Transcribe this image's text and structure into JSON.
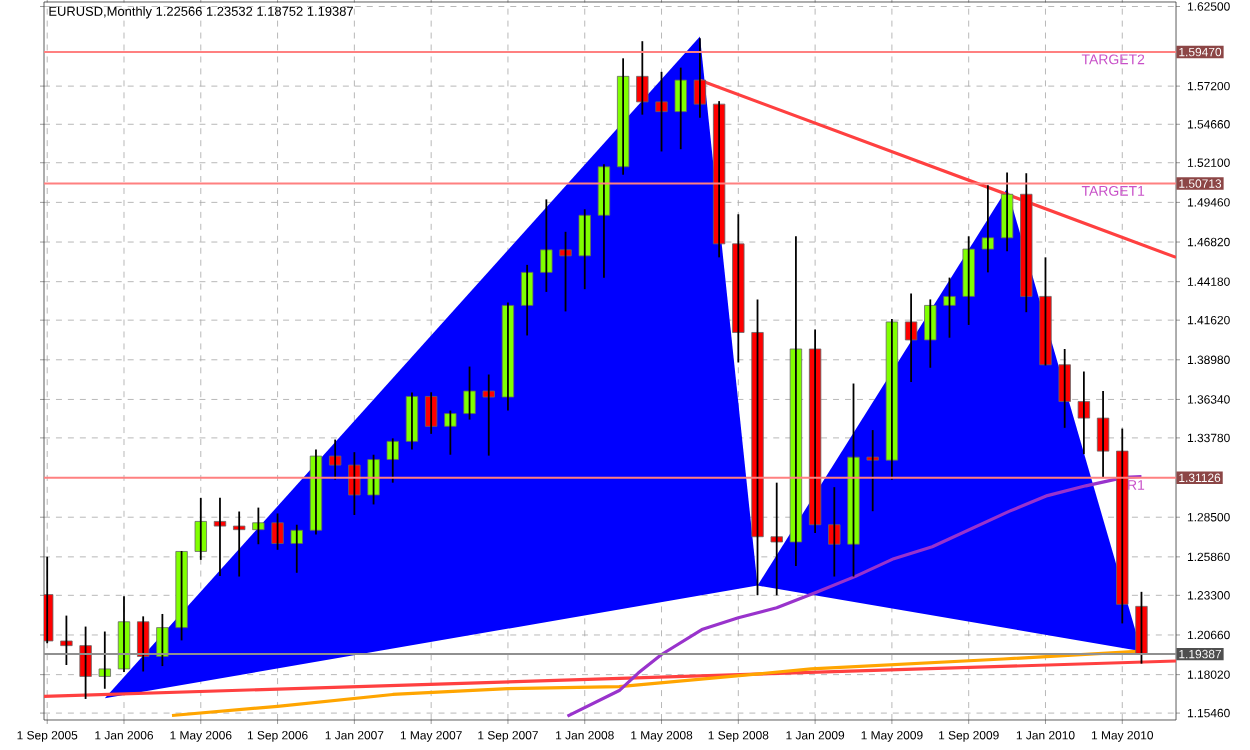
{
  "chart_data": {
    "type": "candlestick",
    "title": "EURUSD,Monthly  1.22566 1.23532 1.18752 1.19387",
    "x": [
      "2005-09",
      "2005-10",
      "2005-11",
      "2005-12",
      "2006-01",
      "2006-02",
      "2006-03",
      "2006-04",
      "2006-05",
      "2006-06",
      "2006-07",
      "2006-08",
      "2006-09",
      "2006-10",
      "2006-11",
      "2006-12",
      "2007-01",
      "2007-02",
      "2007-03",
      "2007-04",
      "2007-05",
      "2007-06",
      "2007-07",
      "2007-08",
      "2007-09",
      "2007-10",
      "2007-11",
      "2007-12",
      "2008-01",
      "2008-02",
      "2008-03",
      "2008-04",
      "2008-05",
      "2008-06",
      "2008-07",
      "2008-08",
      "2008-09",
      "2008-10",
      "2008-11",
      "2008-12",
      "2009-01",
      "2009-02",
      "2009-03",
      "2009-04",
      "2009-05",
      "2009-06",
      "2009-07",
      "2009-08",
      "2009-09",
      "2009-10",
      "2009-11",
      "2009-12",
      "2010-01",
      "2010-02",
      "2010-03",
      "2010-04",
      "2010-05",
      "2010-06"
    ],
    "ohlc": [
      [
        1.2335,
        1.2587,
        1.2011,
        1.2026
      ],
      [
        1.2026,
        1.2195,
        1.1866,
        1.1995
      ],
      [
        1.1995,
        1.2122,
        1.164,
        1.179
      ],
      [
        1.179,
        1.2089,
        1.1708,
        1.184
      ],
      [
        1.184,
        1.2323,
        1.182,
        1.2154
      ],
      [
        1.2154,
        1.219,
        1.1823,
        1.1923
      ],
      [
        1.1923,
        1.2206,
        1.1859,
        1.2115
      ],
      [
        1.2115,
        1.2625,
        1.203,
        1.2622
      ],
      [
        1.2622,
        1.2979,
        1.2566,
        1.2822
      ],
      [
        1.2822,
        1.2979,
        1.2458,
        1.2791
      ],
      [
        1.2791,
        1.2888,
        1.2455,
        1.2767
      ],
      [
        1.2767,
        1.2914,
        1.267,
        1.2813
      ],
      [
        1.2813,
        1.2875,
        1.2633,
        1.2675
      ],
      [
        1.2675,
        1.28,
        1.248,
        1.2763
      ],
      [
        1.2763,
        1.33,
        1.2735,
        1.3257
      ],
      [
        1.3257,
        1.3367,
        1.31,
        1.3197
      ],
      [
        1.3197,
        1.3283,
        1.2865,
        1.2998
      ],
      [
        1.2998,
        1.3266,
        1.2935,
        1.3234
      ],
      [
        1.3234,
        1.3375,
        1.308,
        1.3355
      ],
      [
        1.3355,
        1.368,
        1.33,
        1.3654
      ],
      [
        1.3654,
        1.3682,
        1.3405,
        1.3455
      ],
      [
        1.3455,
        1.356,
        1.3266,
        1.354
      ],
      [
        1.354,
        1.3853,
        1.35,
        1.369
      ],
      [
        1.369,
        1.38,
        1.326,
        1.365
      ],
      [
        1.365,
        1.428,
        1.356,
        1.426
      ],
      [
        1.426,
        1.453,
        1.406,
        1.448
      ],
      [
        1.448,
        1.4966,
        1.435,
        1.463
      ],
      [
        1.463,
        1.475,
        1.422,
        1.459
      ],
      [
        1.459,
        1.49,
        1.4368,
        1.486
      ],
      [
        1.486,
        1.52,
        1.4445,
        1.5183
      ],
      [
        1.5183,
        1.5905,
        1.513,
        1.5785
      ],
      [
        1.5785,
        1.6019,
        1.553,
        1.5615
      ],
      [
        1.5615,
        1.5815,
        1.5285,
        1.555
      ],
      [
        1.555,
        1.5843,
        1.53,
        1.576
      ],
      [
        1.576,
        1.6038,
        1.551,
        1.56
      ],
      [
        1.56,
        1.562,
        1.458,
        1.467
      ],
      [
        1.467,
        1.4867,
        1.388,
        1.408
      ],
      [
        1.408,
        1.43,
        1.233,
        1.272
      ],
      [
        1.272,
        1.308,
        1.233,
        1.2685
      ],
      [
        1.2685,
        1.472,
        1.2525,
        1.397
      ],
      [
        1.397,
        1.41,
        1.2745,
        1.28
      ],
      [
        1.28,
        1.305,
        1.2455,
        1.267
      ],
      [
        1.267,
        1.374,
        1.2455,
        1.325
      ],
      [
        1.325,
        1.343,
        1.289,
        1.323
      ],
      [
        1.323,
        1.417,
        1.31,
        1.415
      ],
      [
        1.415,
        1.434,
        1.375,
        1.403
      ],
      [
        1.403,
        1.43,
        1.3845,
        1.426
      ],
      [
        1.426,
        1.4445,
        1.4045,
        1.432
      ],
      [
        1.432,
        1.472,
        1.413,
        1.4635
      ],
      [
        1.4635,
        1.506,
        1.448,
        1.471
      ],
      [
        1.471,
        1.5145,
        1.462,
        1.5
      ],
      [
        1.5,
        1.514,
        1.4215,
        1.432
      ],
      [
        1.432,
        1.458,
        1.386,
        1.3865
      ],
      [
        1.3865,
        1.397,
        1.3445,
        1.362
      ],
      [
        1.362,
        1.382,
        1.327,
        1.351
      ],
      [
        1.351,
        1.369,
        1.3115,
        1.329
      ],
      [
        1.329,
        1.344,
        1.2143,
        1.227
      ],
      [
        1.22566,
        1.23532,
        1.18752,
        1.19387
      ]
    ],
    "colors": [
      "#ff0000",
      "#ff0000",
      "#ff0000",
      "#80ff00",
      "#80ff00",
      "#ff0000",
      "#80ff00",
      "#80ff00",
      "#80ff00",
      "#ff0000",
      "#ff0000",
      "#80ff00",
      "#ff0000",
      "#80ff00",
      "#80ff00",
      "#ff0000",
      "#ff0000",
      "#80ff00",
      "#80ff00",
      "#80ff00",
      "#ff0000",
      "#80ff00",
      "#80ff00",
      "#ff0000",
      "#80ff00",
      "#80ff00",
      "#80ff00",
      "#ff0000",
      "#80ff00",
      "#80ff00",
      "#80ff00",
      "#ff0000",
      "#ff0000",
      "#80ff00",
      "#ff0000",
      "#ff0000",
      "#ff0000",
      "#ff0000",
      "#ff0000",
      "#80ff00",
      "#ff0000",
      "#ff0000",
      "#80ff00",
      "#ff0000",
      "#80ff00",
      "#ff0000",
      "#80ff00",
      "#80ff00",
      "#80ff00",
      "#80ff00",
      "#80ff00",
      "#ff0000",
      "#ff0000",
      "#ff0000",
      "#ff0000",
      "#ff0000",
      "#ff0000",
      "#ff0000"
    ],
    "series": [
      {
        "type": "area",
        "color": "#0000ff",
        "x": [
          "2005-12-01",
          "2008-07-01",
          "2008-10-01"
        ],
        "values": [
          1.1644,
          1.605,
          1.2395
        ]
      },
      {
        "type": "area",
        "color": "#0000ff",
        "x": [
          "2008-10-01",
          "2009-11-01",
          "2010-06-01"
        ],
        "values": [
          1.2395,
          1.5038,
          1.1958
        ]
      },
      {
        "type": "line",
        "color": "#ff4040",
        "x": [
          "2008-07-01",
          "2010-07-25"
        ],
        "values": [
          1.5759,
          1.458
        ]
      },
      {
        "type": "line",
        "color": "#ff4040",
        "x": [
          "2005-08-26",
          "2010-07-25"
        ],
        "values": [
          1.1657,
          1.1893
        ]
      },
      {
        "type": "line",
        "color": "#ffa500",
        "x": [
          "2006-03-16",
          "2006-09-01",
          "2007-03-01",
          "2007-09-01",
          "2008-02-25",
          "2008-12-25",
          "2009-10-25",
          "2010-06-01"
        ],
        "values": [
          1.153,
          1.1591,
          1.167,
          1.1709,
          1.1722,
          1.184,
          1.1906,
          1.1958
        ]
      },
      {
        "type": "line",
        "color": "#9933cc",
        "x": [
          "2007-12-04",
          "2008-02-25",
          "2008-03-25",
          "2008-05-01",
          "2008-07-04",
          "2008-09-01",
          "2008-11-01",
          "2009-01-04",
          "2009-03-04",
          "2009-05-04",
          "2009-07-04",
          "2009-09-04",
          "2009-11-04",
          "2010-01-04",
          "2010-03-04",
          "2010-05-04",
          "2010-06-01"
        ],
        "values": [
          1.1526,
          1.1696,
          1.1814,
          1.1936,
          1.2102,
          1.2181,
          1.2247,
          1.2352,
          1.2456,
          1.2574,
          1.2653,
          1.2771,
          1.2889,
          1.2994,
          1.3059,
          1.3115,
          1.3121
        ]
      }
    ],
    "ref_lines": [
      {
        "axis": "y",
        "value": 1.5947,
        "label": "TARGET2",
        "color": "#ff8080"
      },
      {
        "axis": "y",
        "value": 1.50713,
        "label": "TARGET1",
        "color": "#ff8080"
      },
      {
        "axis": "y",
        "value": 1.31126,
        "label": "R1",
        "color": "#ff8080"
      },
      {
        "axis": "y",
        "value": 1.19387,
        "color": "#909090"
      }
    ],
    "xlim": [
      "2005-08-26",
      "2010-07-25"
    ],
    "ylim": [
      1.15,
      1.628
    ],
    "xticks": [
      {
        "value": "2005-09-01",
        "label": "1 Sep 2005"
      },
      {
        "value": "2006-01-01",
        "label": "1 Jan 2006"
      },
      {
        "value": "2006-05-01",
        "label": "1 May 2006"
      },
      {
        "value": "2006-09-01",
        "label": "1 Sep 2006"
      },
      {
        "value": "2007-01-01",
        "label": "1 Jan 2007"
      },
      {
        "value": "2007-05-01",
        "label": "1 May 2007"
      },
      {
        "value": "2007-09-01",
        "label": "1 Sep 2007"
      },
      {
        "value": "2008-01-01",
        "label": "1 Jan 2008"
      },
      {
        "value": "2008-05-01",
        "label": "1 May 2008"
      },
      {
        "value": "2008-09-01",
        "label": "1 Sep 2008"
      },
      {
        "value": "2009-01-01",
        "label": "1 Jan 2009"
      },
      {
        "value": "2009-05-01",
        "label": "1 May 2009"
      },
      {
        "value": "2009-09-01",
        "label": "1 Sep 2009"
      },
      {
        "value": "2010-01-01",
        "label": "1 Jan 2010"
      },
      {
        "value": "2010-05-01",
        "label": "1 May 2010"
      }
    ],
    "yticks": [
      {
        "value": 1.625,
        "label": "1.62500"
      },
      {
        "value": 1.572,
        "label": "1.57200"
      },
      {
        "value": 1.5466,
        "label": "1.54660"
      },
      {
        "value": 1.521,
        "label": "1.52100"
      },
      {
        "value": 1.4946,
        "label": "1.49460"
      },
      {
        "value": 1.4682,
        "label": "1.46820"
      },
      {
        "value": 1.4418,
        "label": "1.44180"
      },
      {
        "value": 1.4162,
        "label": "1.41620"
      },
      {
        "value": 1.3898,
        "label": "1.38980"
      },
      {
        "value": 1.3634,
        "label": "1.36340"
      },
      {
        "value": 1.3378,
        "label": "1.33780"
      },
      {
        "value": 1.285,
        "label": "1.28500"
      },
      {
        "value": 1.2586,
        "label": "1.25860"
      },
      {
        "value": 1.233,
        "label": "1.23300"
      },
      {
        "value": 1.2066,
        "label": "1.20660"
      },
      {
        "value": 1.1802,
        "label": "1.18020"
      },
      {
        "value": 1.1546,
        "label": "1.15460"
      }
    ],
    "annotations": [
      "1.59470",
      "1.50713",
      "1.31126",
      "1.19387"
    ],
    "grid": true
  }
}
